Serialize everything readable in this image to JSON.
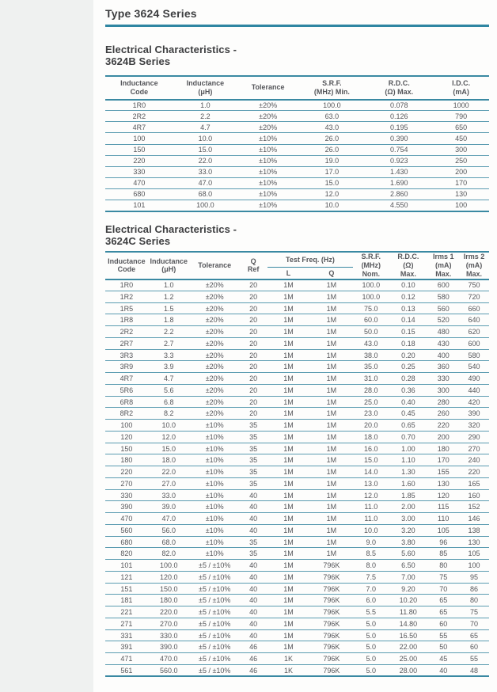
{
  "page_title": "Type 3624 Series",
  "colors": {
    "accent_teal": "#2f86a2",
    "row_rule_teal": "#5b9cb1",
    "heading_text": "#3d3e40",
    "table_text": "#55565a"
  },
  "section_b": {
    "heading": "Electrical Characteristics -\n3624B Series",
    "table": {
      "headers": [
        "Inductance\nCode",
        "Inductance\n(μH)",
        "Tolerance",
        "S.R.F.\n(MHz) Min.",
        "R.D.C.\n(Ω) Max.",
        "I.D.C.\n(mA)"
      ],
      "rows": [
        [
          "1R0",
          "1.0",
          "±20%",
          "100.0",
          "0.078",
          "1000"
        ],
        [
          "2R2",
          "2.2",
          "±20%",
          "63.0",
          "0.126",
          "790"
        ],
        [
          "4R7",
          "4.7",
          "±20%",
          "43.0",
          "0.195",
          "650"
        ],
        [
          "100",
          "10.0",
          "±10%",
          "26.0",
          "0.390",
          "450"
        ],
        [
          "150",
          "15.0",
          "±10%",
          "26.0",
          "0.754",
          "300"
        ],
        [
          "220",
          "22.0",
          "±10%",
          "19.0",
          "0.923",
          "250"
        ],
        [
          "330",
          "33.0",
          "±10%",
          "17.0",
          "1.430",
          "200"
        ],
        [
          "470",
          "47.0",
          "±10%",
          "15.0",
          "1.690",
          "170"
        ],
        [
          "680",
          "68.0",
          "±10%",
          "12.0",
          "2.860",
          "130"
        ],
        [
          "101",
          "100.0",
          "±10%",
          "10.0",
          "4.550",
          "100"
        ]
      ]
    }
  },
  "section_c": {
    "heading": "Electrical Characteristics -\n3624C Series",
    "table": {
      "headers": {
        "inductance_code": "Inductance\nCode",
        "inductance_uh": "Inductance\n(μH)",
        "tolerance": "Tolerance",
        "q_ref": "Q\nRef",
        "test_freq_group": "Test Freq. (Hz)",
        "test_freq_l": "L",
        "test_freq_q": "Q",
        "srf": "S.R.F.\n(MHz)\nNom.",
        "rdc": "R.D.C.\n(Ω)\nMax.",
        "irms1": "Irms 1\n(mA)\nMax.",
        "irms2": "Irms 2\n(mA)\nMax."
      },
      "rows": [
        [
          "1R0",
          "1.0",
          "±20%",
          "20",
          "1M",
          "1M",
          "100.0",
          "0.10",
          "600",
          "750"
        ],
        [
          "1R2",
          "1.2",
          "±20%",
          "20",
          "1M",
          "1M",
          "100.0",
          "0.12",
          "580",
          "720"
        ],
        [
          "1R5",
          "1.5",
          "±20%",
          "20",
          "1M",
          "1M",
          "75.0",
          "0.13",
          "560",
          "660"
        ],
        [
          "1R8",
          "1.8",
          "±20%",
          "20",
          "1M",
          "1M",
          "60.0",
          "0.14",
          "520",
          "640"
        ],
        [
          "2R2",
          "2.2",
          "±20%",
          "20",
          "1M",
          "1M",
          "50.0",
          "0.15",
          "480",
          "620"
        ],
        [
          "2R7",
          "2.7",
          "±20%",
          "20",
          "1M",
          "1M",
          "43.0",
          "0.18",
          "430",
          "600"
        ],
        [
          "3R3",
          "3.3",
          "±20%",
          "20",
          "1M",
          "1M",
          "38.0",
          "0.20",
          "400",
          "580"
        ],
        [
          "3R9",
          "3.9",
          "±20%",
          "20",
          "1M",
          "1M",
          "35.0",
          "0.25",
          "360",
          "540"
        ],
        [
          "4R7",
          "4.7",
          "±20%",
          "20",
          "1M",
          "1M",
          "31.0",
          "0.28",
          "330",
          "490"
        ],
        [
          "5R6",
          "5.6",
          "±20%",
          "20",
          "1M",
          "1M",
          "28.0",
          "0.36",
          "300",
          "440"
        ],
        [
          "6R8",
          "6.8",
          "±20%",
          "20",
          "1M",
          "1M",
          "25.0",
          "0.40",
          "280",
          "420"
        ],
        [
          "8R2",
          "8.2",
          "±20%",
          "20",
          "1M",
          "1M",
          "23.0",
          "0.45",
          "260",
          "390"
        ],
        [
          "100",
          "10.0",
          "±10%",
          "35",
          "1M",
          "1M",
          "20.0",
          "0.65",
          "220",
          "320"
        ],
        [
          "120",
          "12.0",
          "±10%",
          "35",
          "1M",
          "1M",
          "18.0",
          "0.70",
          "200",
          "290"
        ],
        [
          "150",
          "15.0",
          "±10%",
          "35",
          "1M",
          "1M",
          "16.0",
          "1.00",
          "180",
          "270"
        ],
        [
          "180",
          "18.0",
          "±10%",
          "35",
          "1M",
          "1M",
          "15.0",
          "1.10",
          "170",
          "240"
        ],
        [
          "220",
          "22.0",
          "±10%",
          "35",
          "1M",
          "1M",
          "14.0",
          "1.30",
          "155",
          "220"
        ],
        [
          "270",
          "27.0",
          "±10%",
          "35",
          "1M",
          "1M",
          "13.0",
          "1.60",
          "130",
          "165"
        ],
        [
          "330",
          "33.0",
          "±10%",
          "40",
          "1M",
          "1M",
          "12.0",
          "1.85",
          "120",
          "160"
        ],
        [
          "390",
          "39.0",
          "±10%",
          "40",
          "1M",
          "1M",
          "11.0",
          "2.00",
          "115",
          "152"
        ],
        [
          "470",
          "47.0",
          "±10%",
          "40",
          "1M",
          "1M",
          "11.0",
          "3.00",
          "110",
          "146"
        ],
        [
          "560",
          "56.0",
          "±10%",
          "40",
          "1M",
          "1M",
          "10.0",
          "3.20",
          "105",
          "138"
        ],
        [
          "680",
          "68.0",
          "±10%",
          "35",
          "1M",
          "1M",
          "9.0",
          "3.80",
          "96",
          "130"
        ],
        [
          "820",
          "82.0",
          "±10%",
          "35",
          "1M",
          "1M",
          "8.5",
          "5.60",
          "85",
          "105"
        ],
        [
          "101",
          "100.0",
          "±5 / ±10%",
          "40",
          "1M",
          "796K",
          "8.0",
          "6.50",
          "80",
          "100"
        ],
        [
          "121",
          "120.0",
          "±5 / ±10%",
          "40",
          "1M",
          "796K",
          "7.5",
          "7.00",
          "75",
          "95"
        ],
        [
          "151",
          "150.0",
          "±5 / ±10%",
          "40",
          "1M",
          "796K",
          "7.0",
          "9.20",
          "70",
          "86"
        ],
        [
          "181",
          "180.0",
          "±5 / ±10%",
          "40",
          "1M",
          "796K",
          "6.0",
          "10.20",
          "65",
          "80"
        ],
        [
          "221",
          "220.0",
          "±5 / ±10%",
          "40",
          "1M",
          "796K",
          "5.5",
          "11.80",
          "65",
          "75"
        ],
        [
          "271",
          "270.0",
          "±5 / ±10%",
          "40",
          "1M",
          "796K",
          "5.0",
          "14.80",
          "60",
          "70"
        ],
        [
          "331",
          "330.0",
          "±5 / ±10%",
          "40",
          "1M",
          "796K",
          "5.0",
          "16.50",
          "55",
          "65"
        ],
        [
          "391",
          "390.0",
          "±5 / ±10%",
          "46",
          "1M",
          "796K",
          "5.0",
          "22.00",
          "50",
          "60"
        ],
        [
          "471",
          "470.0",
          "±5 / ±10%",
          "46",
          "1K",
          "796K",
          "5.0",
          "25.00",
          "45",
          "55"
        ],
        [
          "561",
          "560.0",
          "±5 / ±10%",
          "46",
          "1K",
          "796K",
          "5.0",
          "28.00",
          "40",
          "48"
        ]
      ]
    }
  }
}
